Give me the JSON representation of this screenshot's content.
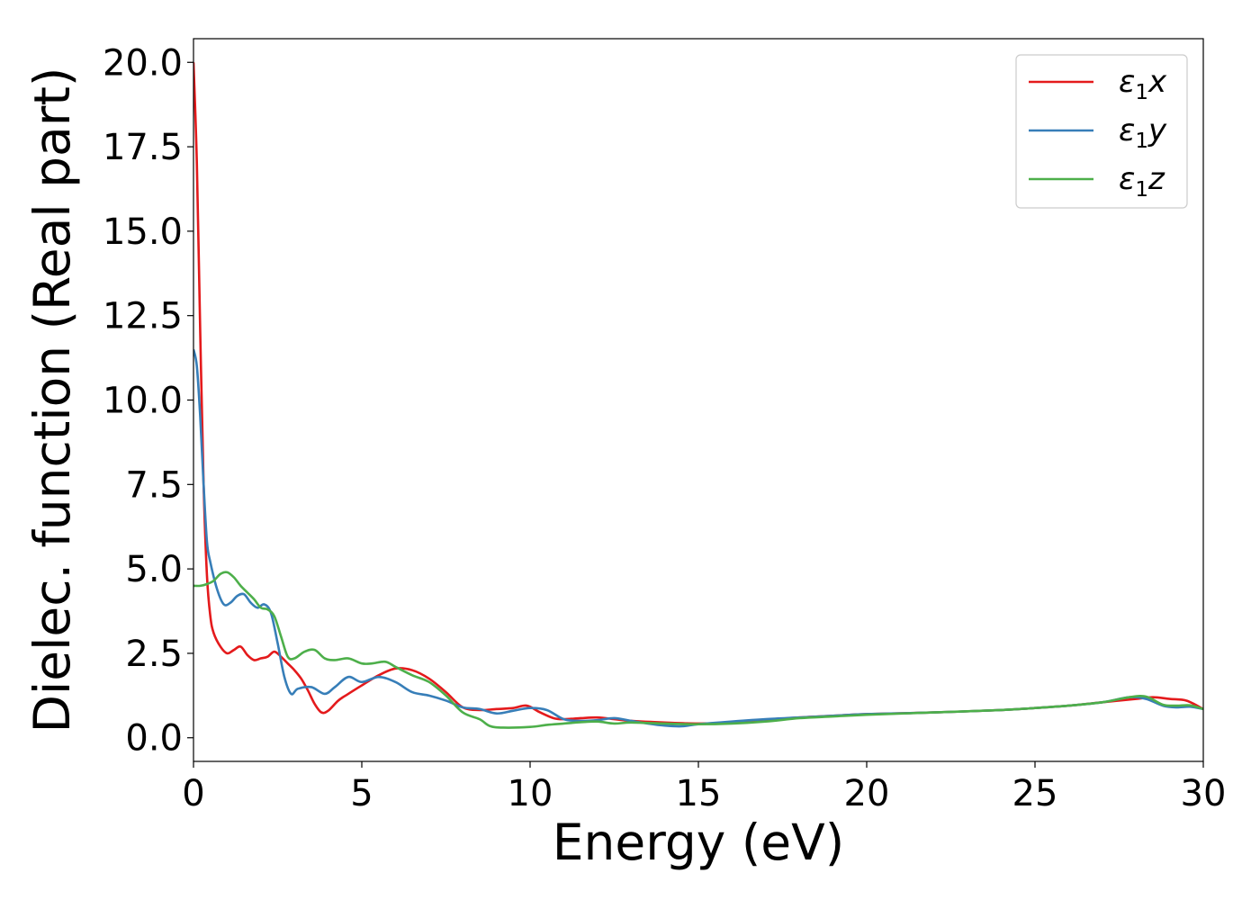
{
  "chart_data": {
    "type": "line",
    "xlabel": "Energy (eV)",
    "ylabel": "Dielec. function (Real part)",
    "xlim": [
      0,
      30
    ],
    "ylim": [
      -0.7,
      20.7
    ],
    "xticks": [
      "0",
      "5",
      "10",
      "15",
      "20",
      "25",
      "30"
    ],
    "yticks": [
      "0.0",
      "2.5",
      "5.0",
      "7.5",
      "10.0",
      "12.5",
      "15.0",
      "17.5",
      "20.0"
    ],
    "grid": false,
    "legend_position": "top-right",
    "series": [
      {
        "name": "ε₁x",
        "legend_main": "ε",
        "legend_sub": "1",
        "legend_suffix": "x",
        "color": "#e41a1c",
        "x": [
          0,
          0.1,
          0.2,
          0.3,
          0.4,
          0.5,
          0.6,
          0.8,
          1.0,
          1.2,
          1.4,
          1.6,
          1.8,
          2.0,
          2.2,
          2.4,
          2.6,
          2.8,
          3.0,
          3.2,
          3.4,
          3.6,
          3.8,
          4.0,
          4.3,
          4.6,
          5.0,
          5.5,
          6.0,
          6.5,
          7.0,
          7.5,
          8.0,
          8.5,
          9.0,
          9.5,
          9.9,
          10.3,
          10.7,
          11.0,
          11.5,
          12.0,
          12.5,
          13.0,
          14.0,
          15.0,
          16.0,
          17.0,
          18.0,
          19.0,
          20.0,
          22.0,
          24.0,
          25.0,
          26.0,
          27.0,
          28.0,
          28.5,
          29.0,
          29.5,
          30.0
        ],
        "y": [
          20.0,
          17.0,
          12.0,
          7.5,
          4.8,
          3.6,
          3.1,
          2.7,
          2.5,
          2.6,
          2.7,
          2.45,
          2.3,
          2.35,
          2.4,
          2.55,
          2.4,
          2.2,
          2.0,
          1.75,
          1.4,
          1.0,
          0.75,
          0.8,
          1.1,
          1.3,
          1.55,
          1.85,
          2.05,
          2.0,
          1.75,
          1.35,
          0.9,
          0.82,
          0.85,
          0.88,
          0.95,
          0.75,
          0.58,
          0.55,
          0.58,
          0.6,
          0.55,
          0.5,
          0.45,
          0.42,
          0.45,
          0.52,
          0.6,
          0.65,
          0.7,
          0.75,
          0.82,
          0.88,
          0.95,
          1.05,
          1.15,
          1.2,
          1.15,
          1.1,
          0.85
        ]
      },
      {
        "name": "ε₁y",
        "legend_main": "ε",
        "legend_sub": "1",
        "legend_suffix": "y",
        "color": "#377eb8",
        "x": [
          0,
          0.1,
          0.2,
          0.3,
          0.4,
          0.5,
          0.7,
          0.9,
          1.1,
          1.3,
          1.5,
          1.7,
          1.9,
          2.1,
          2.3,
          2.5,
          2.7,
          2.9,
          3.1,
          3.5,
          3.9,
          4.2,
          4.6,
          5.0,
          5.5,
          6.0,
          6.5,
          7.0,
          7.5,
          8.0,
          8.5,
          9.0,
          9.5,
          10.0,
          10.5,
          11.0,
          11.5,
          12.0,
          12.5,
          13.0,
          13.5,
          14.0,
          14.5,
          15.0,
          16.0,
          17.0,
          18.0,
          19.0,
          20.0,
          22.0,
          24.0,
          25.0,
          26.0,
          27.0,
          27.8,
          28.3,
          28.8,
          29.2,
          29.6,
          30.0
        ],
        "y": [
          11.5,
          11.0,
          9.5,
          7.5,
          5.8,
          5.2,
          4.4,
          3.95,
          4.0,
          4.2,
          4.25,
          4.0,
          3.85,
          3.95,
          3.7,
          2.8,
          1.8,
          1.3,
          1.45,
          1.5,
          1.3,
          1.5,
          1.8,
          1.65,
          1.8,
          1.65,
          1.35,
          1.25,
          1.1,
          0.9,
          0.85,
          0.72,
          0.8,
          0.88,
          0.82,
          0.55,
          0.5,
          0.52,
          0.58,
          0.5,
          0.42,
          0.36,
          0.34,
          0.4,
          0.48,
          0.55,
          0.6,
          0.65,
          0.7,
          0.75,
          0.82,
          0.88,
          0.95,
          1.05,
          1.2,
          1.15,
          0.95,
          0.9,
          0.92,
          0.85
        ]
      },
      {
        "name": "ε₁z",
        "legend_main": "ε",
        "legend_sub": "1",
        "legend_suffix": "z",
        "color": "#4daf4a",
        "x": [
          0,
          0.2,
          0.4,
          0.6,
          0.8,
          1.0,
          1.2,
          1.4,
          1.6,
          1.8,
          2.0,
          2.2,
          2.4,
          2.6,
          2.8,
          3.0,
          3.3,
          3.6,
          3.9,
          4.2,
          4.6,
          5.0,
          5.3,
          5.7,
          6.0,
          6.5,
          7.0,
          7.5,
          8.0,
          8.5,
          8.8,
          9.2,
          10.0,
          10.5,
          11.0,
          11.5,
          12.0,
          12.5,
          13.0,
          14.0,
          15.0,
          16.0,
          17.0,
          18.0,
          19.0,
          20.0,
          22.0,
          24.0,
          25.0,
          26.0,
          27.0,
          27.8,
          28.3,
          28.8,
          29.2,
          29.6,
          30.0
        ],
        "y": [
          4.5,
          4.5,
          4.55,
          4.65,
          4.85,
          4.9,
          4.75,
          4.5,
          4.3,
          4.1,
          3.85,
          3.8,
          3.6,
          3.0,
          2.4,
          2.35,
          2.55,
          2.6,
          2.35,
          2.3,
          2.35,
          2.2,
          2.2,
          2.25,
          2.1,
          1.85,
          1.65,
          1.25,
          0.75,
          0.55,
          0.35,
          0.3,
          0.32,
          0.38,
          0.42,
          0.46,
          0.48,
          0.42,
          0.45,
          0.42,
          0.4,
          0.42,
          0.48,
          0.58,
          0.63,
          0.68,
          0.75,
          0.82,
          0.88,
          0.95,
          1.05,
          1.2,
          1.22,
          0.98,
          0.95,
          0.96,
          0.85
        ]
      }
    ]
  }
}
